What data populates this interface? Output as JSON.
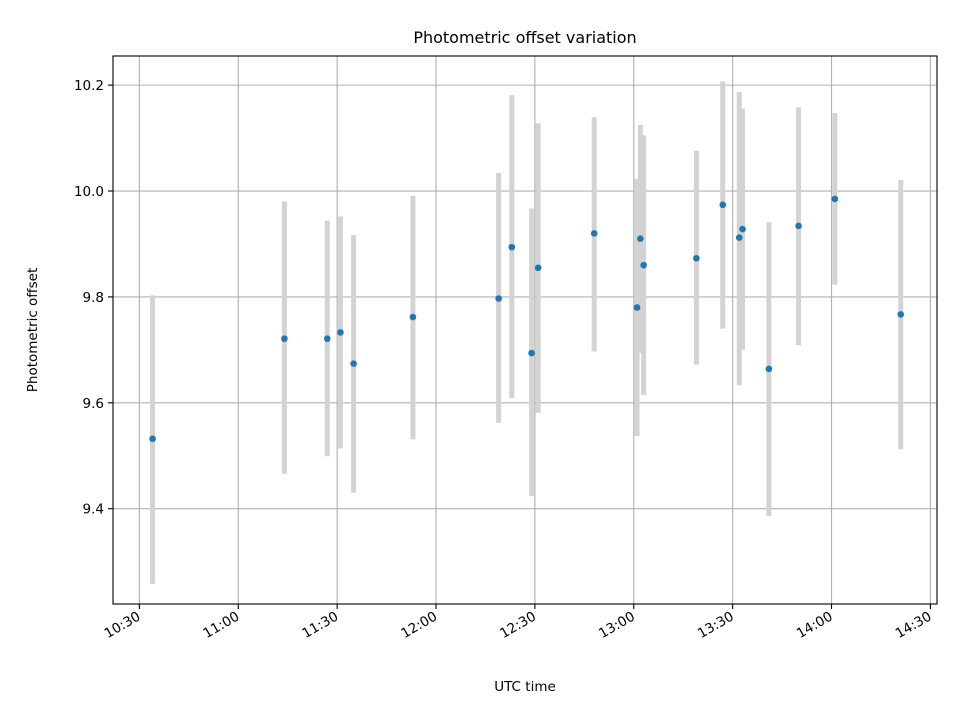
{
  "chart_data": {
    "type": "scatter",
    "title": "Photometric offset variation",
    "xlabel": "UTC time",
    "ylabel": "Photometric offset",
    "x_axis": {
      "kind": "time",
      "range": [
        "10:22",
        "14:32"
      ],
      "ticks": [
        "10:30",
        "11:00",
        "11:30",
        "12:00",
        "12:30",
        "13:00",
        "13:30",
        "14:00",
        "14:30"
      ]
    },
    "y_axis": {
      "range": [
        9.22,
        10.255
      ],
      "ticks": [
        "9.4",
        "9.6",
        "9.8",
        "10.0",
        "10.2"
      ]
    },
    "grid": true,
    "colors": {
      "point": "#1f77b4",
      "errorbar": "#d3d3d3",
      "grid": "#b0b0b0"
    },
    "points": [
      {
        "t": "10:34",
        "y": 9.532,
        "lo": 9.258,
        "hi": 9.803
      },
      {
        "t": "11:14",
        "y": 9.721,
        "lo": 9.466,
        "hi": 9.98
      },
      {
        "t": "11:27",
        "y": 9.721,
        "lo": 9.499,
        "hi": 9.944
      },
      {
        "t": "11:31",
        "y": 9.733,
        "lo": 9.514,
        "hi": 9.952
      },
      {
        "t": "11:35",
        "y": 9.674,
        "lo": 9.43,
        "hi": 9.917
      },
      {
        "t": "11:53",
        "y": 9.762,
        "lo": 9.531,
        "hi": 9.991
      },
      {
        "t": "12:19",
        "y": 9.797,
        "lo": 9.562,
        "hi": 10.034
      },
      {
        "t": "12:23",
        "y": 9.894,
        "lo": 9.609,
        "hi": 10.181
      },
      {
        "t": "12:29",
        "y": 9.694,
        "lo": 9.424,
        "hi": 9.967
      },
      {
        "t": "12:31",
        "y": 9.855,
        "lo": 9.581,
        "hi": 10.128
      },
      {
        "t": "12:48",
        "y": 9.92,
        "lo": 9.697,
        "hi": 10.139
      },
      {
        "t": "13:01",
        "y": 9.78,
        "lo": 9.537,
        "hi": 10.023
      },
      {
        "t": "13:02",
        "y": 9.91,
        "lo": 9.694,
        "hi": 10.125
      },
      {
        "t": "13:03",
        "y": 9.86,
        "lo": 9.615,
        "hi": 10.105
      },
      {
        "t": "13:19",
        "y": 9.873,
        "lo": 9.672,
        "hi": 10.076
      },
      {
        "t": "13:27",
        "y": 9.974,
        "lo": 9.74,
        "hi": 10.207
      },
      {
        "t": "13:32",
        "y": 9.912,
        "lo": 9.633,
        "hi": 10.187
      },
      {
        "t": "13:33",
        "y": 9.928,
        "lo": 9.7,
        "hi": 10.156
      },
      {
        "t": "13:41",
        "y": 9.664,
        "lo": 9.386,
        "hi": 9.941
      },
      {
        "t": "13:50",
        "y": 9.934,
        "lo": 9.709,
        "hi": 10.158
      },
      {
        "t": "14:01",
        "y": 9.985,
        "lo": 9.823,
        "hi": 10.147
      },
      {
        "t": "14:21",
        "y": 9.767,
        "lo": 9.512,
        "hi": 10.021
      }
    ]
  }
}
